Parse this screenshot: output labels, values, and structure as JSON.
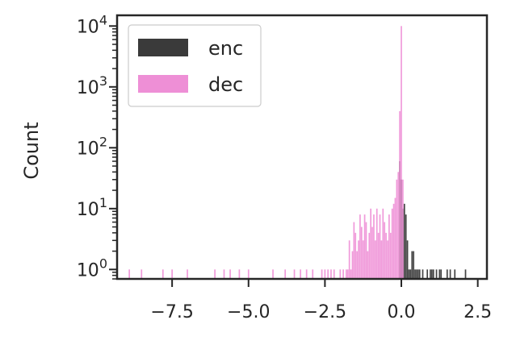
{
  "chart_data": {
    "type": "bar",
    "subtype": "histogram",
    "title": "",
    "xlabel": "",
    "ylabel": "Count",
    "yscale": "log",
    "xlim": [
      -9.3,
      2.8
    ],
    "ylim": [
      0.7,
      15000
    ],
    "grid": false,
    "legend_placement": "top-left",
    "x_ticks": [
      -7.5,
      -5.0,
      -2.5,
      0.0,
      2.5
    ],
    "x_tick_labels": [
      "−7.5",
      "−5.0",
      "−2.5",
      "0.0",
      "2.5"
    ],
    "y_ticks": [
      {
        "value": 1,
        "base": "10",
        "exp": "0"
      },
      {
        "value": 10,
        "base": "10",
        "exp": "1"
      },
      {
        "value": 100,
        "base": "10",
        "exp": "2"
      },
      {
        "value": 1000,
        "base": "10",
        "exp": "3"
      },
      {
        "value": 10000,
        "base": "10",
        "exp": "4"
      }
    ],
    "series": [
      {
        "name": "enc",
        "color": "#3a3a3a",
        "x": [
          -0.05,
          0.0,
          0.05,
          0.1,
          0.15,
          0.2,
          0.25,
          0.3,
          0.35,
          0.4,
          0.45,
          0.5,
          0.55,
          0.6,
          0.7,
          0.85,
          0.95,
          1.0,
          1.05,
          1.15,
          1.25,
          1.3,
          1.5,
          1.6,
          1.75,
          2.1
        ],
        "values": [
          60,
          30,
          10,
          12,
          8,
          3,
          1,
          1,
          2,
          2,
          1,
          1,
          1,
          1,
          1,
          1,
          1,
          1,
          1,
          1,
          1,
          1,
          1,
          1,
          1,
          1
        ]
      },
      {
        "name": "dec",
        "color": "#ee8fd6",
        "x": [
          -8.9,
          -8.5,
          -7.8,
          -7.5,
          -7.0,
          -6.1,
          -5.8,
          -5.6,
          -5.3,
          -5.0,
          -4.2,
          -3.8,
          -3.5,
          -3.3,
          -3.1,
          -2.9,
          -2.6,
          -2.5,
          -2.4,
          -2.3,
          -2.2,
          -2.0,
          -1.9,
          -1.8,
          -1.75,
          -1.7,
          -1.65,
          -1.6,
          -1.55,
          -1.5,
          -1.45,
          -1.4,
          -1.35,
          -1.3,
          -1.25,
          -1.2,
          -1.15,
          -1.1,
          -1.05,
          -1.0,
          -0.95,
          -0.9,
          -0.85,
          -0.8,
          -0.75,
          -0.7,
          -0.65,
          -0.6,
          -0.55,
          -0.5,
          -0.45,
          -0.4,
          -0.35,
          -0.3,
          -0.25,
          -0.2,
          -0.15,
          -0.1,
          -0.05,
          0.0,
          0.05
        ],
        "values": [
          1,
          1,
          1,
          1,
          1,
          1,
          1,
          1,
          1,
          1,
          1,
          1,
          1,
          1,
          1,
          1,
          1,
          1,
          1,
          1,
          1,
          1,
          1,
          1,
          1,
          3,
          1,
          2,
          6,
          4,
          2,
          3,
          8,
          5,
          3,
          8,
          6,
          2,
          4,
          10,
          5,
          8,
          3,
          10,
          4,
          8,
          3,
          10,
          6,
          4,
          3,
          8,
          4,
          10,
          12,
          15,
          30,
          40,
          400,
          10000,
          30
        ]
      }
    ]
  }
}
